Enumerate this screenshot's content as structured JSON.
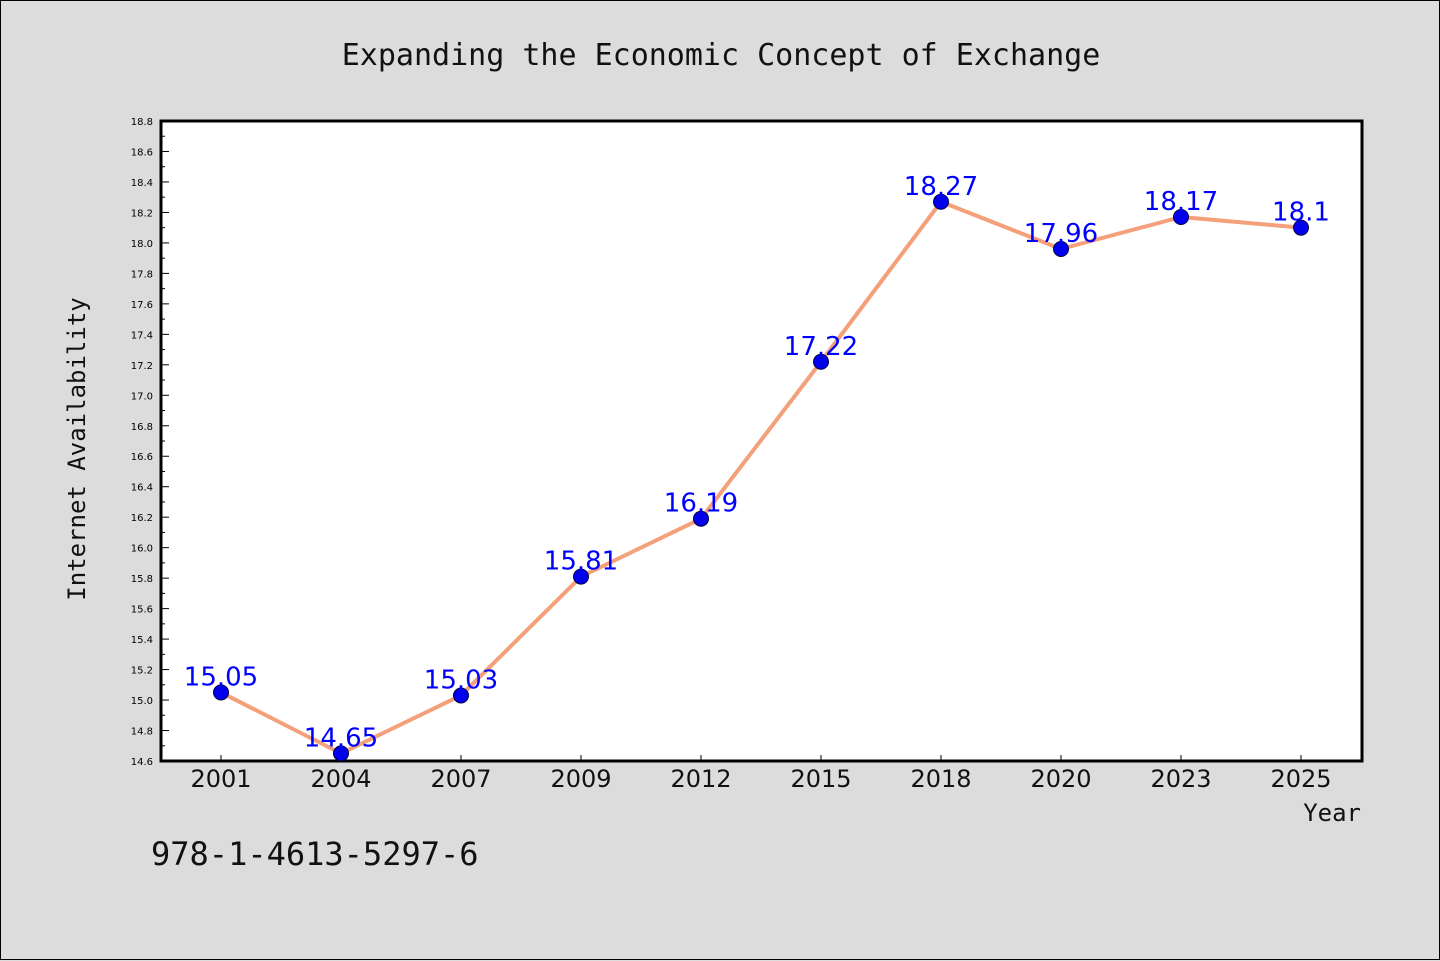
{
  "chart_data": {
    "type": "line",
    "title": "Expanding the Economic Concept of Exchange",
    "xlabel": "Year",
    "ylabel": "Internet Availability",
    "categories": [
      "2001",
      "2004",
      "2007",
      "2009",
      "2012",
      "2015",
      "2018",
      "2020",
      "2023",
      "2025"
    ],
    "series": [
      {
        "values": [
          15.05,
          14.65,
          15.03,
          15.81,
          16.19,
          17.22,
          18.27,
          17.96,
          18.17,
          18.1
        ]
      }
    ],
    "data_labels": [
      "15.05",
      "14.65",
      "15.03",
      "15.81",
      "16.19",
      "17.22",
      "18.27",
      "17.96",
      "18.17",
      "18.1"
    ],
    "ylim": [
      14.6,
      18.8
    ],
    "yticks": [
      "14.6",
      "14.8",
      "15.0",
      "15.2",
      "15.4",
      "15.6",
      "15.8",
      "16.0",
      "16.2",
      "16.4",
      "16.6",
      "16.8",
      "17.0",
      "17.2",
      "17.4",
      "17.6",
      "17.8",
      "18.0",
      "18.2",
      "18.4",
      "18.6",
      "18.8"
    ],
    "grid": false,
    "line_color": "#f4a07a",
    "marker_color": "#0000ee",
    "label_color": "#0000ff"
  },
  "footer": {
    "isbn": "978-1-4613-5297-6"
  }
}
